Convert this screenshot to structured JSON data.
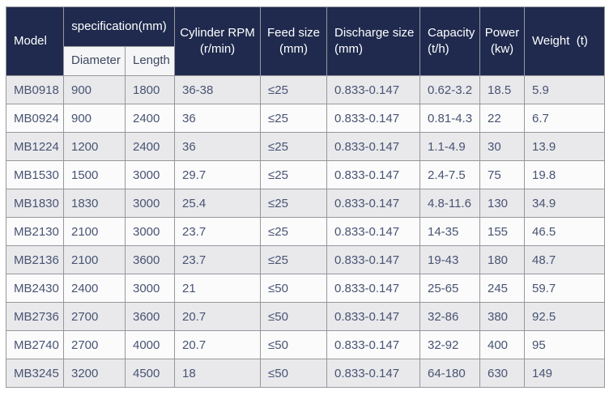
{
  "colors": {
    "header_bg": "#1f2a4e",
    "header_text": "#ffffff",
    "subheader_bg": "#f5f5f7",
    "body_text": "#485472",
    "row_odd_bg": "#e9e9ec",
    "row_even_bg": "#fbfbfc",
    "border": "#97979b"
  },
  "header": {
    "model": "Model",
    "specification": "specification(mm)",
    "diameter": "Diameter",
    "length": "Length",
    "cylinder_rpm": "Cylinder RPM\n(r/min)",
    "feed_size": "Feed size\n(mm)",
    "discharge_size": "Discharge size\n(mm)",
    "capacity": "Capacity\n(t/h)",
    "power": "Power\n(kw)",
    "weight": "Weight  (t)"
  },
  "chart_data": {
    "type": "table",
    "title": "",
    "columns": [
      "Model",
      "Diameter",
      "Length",
      "Cylinder RPM (r/min)",
      "Feed size (mm)",
      "Discharge size (mm)",
      "Capacity (t/h)",
      "Power (kw)",
      "Weight (t)"
    ],
    "column_groups": [
      {
        "label": "specification(mm)",
        "spans": [
          "Diameter",
          "Length"
        ]
      }
    ],
    "rows": [
      [
        "MB0918",
        "900",
        "1800",
        "36-38",
        "≤25",
        "0.833-0.147",
        "0.62-3.2",
        "18.5",
        "5.9"
      ],
      [
        "MB0924",
        "900",
        "2400",
        "36",
        "≤25",
        "0.833-0.147",
        "0.81-4.3",
        "22",
        "6.7"
      ],
      [
        "MB1224",
        "1200",
        "2400",
        "36",
        "≤25",
        "0.833-0.147",
        "1.1-4.9",
        "30",
        "13.9"
      ],
      [
        "MB1530",
        "1500",
        "3000",
        "29.7",
        "≤25",
        "0.833-0.147",
        "2.4-7.5",
        "75",
        "19.8"
      ],
      [
        "MB1830",
        "1830",
        "3000",
        "25.4",
        "≤25",
        "0.833-0.147",
        "4.8-11.6",
        "130",
        "34.9"
      ],
      [
        "MB2130",
        "2100",
        "3000",
        "23.7",
        "≤25",
        "0.833-0.147",
        "14-35",
        "155",
        "46.5"
      ],
      [
        "MB2136",
        "2100",
        "3600",
        "23.7",
        "≤25",
        "0.833-0.147",
        "19-43",
        "180",
        "48.7"
      ],
      [
        "MB2430",
        "2400",
        "3000",
        "21",
        "≤50",
        "0.833-0.147",
        "25-65",
        "245",
        "59.7"
      ],
      [
        "MB2736",
        "2700",
        "3600",
        "20.7",
        "≤50",
        "0.833-0.147",
        "32-86",
        "380",
        "92.5"
      ],
      [
        "MB2740",
        "2700",
        "4000",
        "20.7",
        "≤50",
        "0.833-0.147",
        "32-92",
        "400",
        "95"
      ],
      [
        "MB3245",
        "3200",
        "4500",
        "18",
        "≤50",
        "0.833-0.147",
        "64-180",
        "630",
        "149"
      ]
    ]
  }
}
